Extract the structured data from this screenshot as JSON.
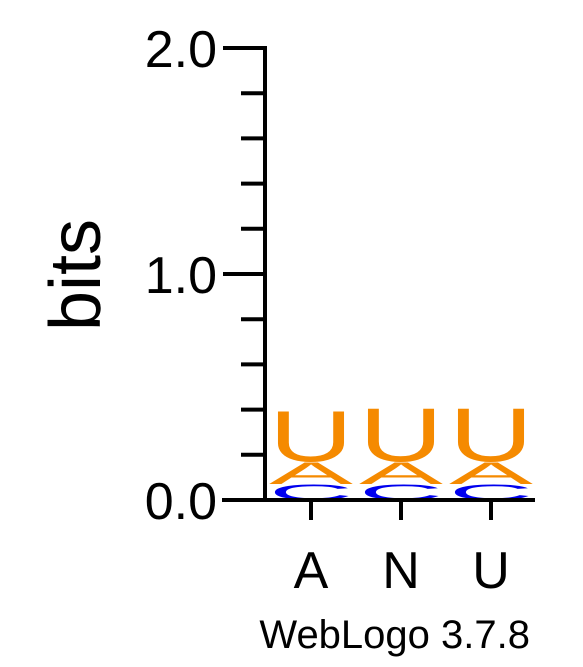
{
  "chart_data": {
    "type": "sequence-logo",
    "ylabel": "bits",
    "ylim": [
      0,
      2.0
    ],
    "yticks": [
      "0.0",
      "1.0",
      "2.0"
    ],
    "categories": [
      "A",
      "N",
      "U"
    ],
    "stacks": [
      [
        {
          "letter": "C",
          "bits": 0.07,
          "color": "#0000ee"
        },
        {
          "letter": "A",
          "bits": 0.1,
          "color": "#f58a00"
        },
        {
          "letter": "U",
          "bits": 0.23,
          "color": "#f58a00"
        }
      ],
      [
        {
          "letter": "C",
          "bits": 0.07,
          "color": "#0000ee"
        },
        {
          "letter": "A",
          "bits": 0.1,
          "color": "#f58a00"
        },
        {
          "letter": "U",
          "bits": 0.24,
          "color": "#f58a00"
        }
      ],
      [
        {
          "letter": "C",
          "bits": 0.07,
          "color": "#0000ee"
        },
        {
          "letter": "A",
          "bits": 0.1,
          "color": "#f58a00"
        },
        {
          "letter": "U",
          "bits": 0.24,
          "color": "#f58a00"
        }
      ]
    ],
    "footer": "WebLogo 3.7.8"
  }
}
